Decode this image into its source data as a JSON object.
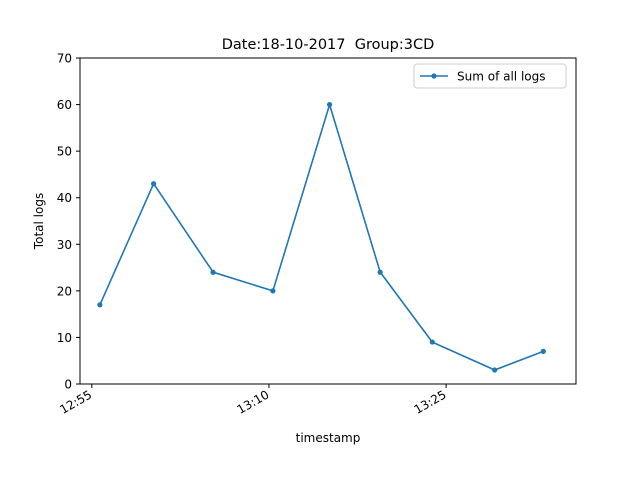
{
  "chart_data": {
    "type": "line",
    "title": "Date:18-10-2017  Group:3CD",
    "xlabel": "timestamp",
    "ylabel": "Total logs",
    "ylim": [
      0,
      70
    ],
    "y_ticks": [
      0,
      10,
      20,
      30,
      40,
      50,
      60,
      70
    ],
    "x_range": [
      "12:54",
      "13:36"
    ],
    "x_ticks": [
      "12:55",
      "13:10",
      "13:25"
    ],
    "x_tick_rotation": 30,
    "grid": false,
    "legend_position": "top-right",
    "series": [
      {
        "name": "Sum of all logs",
        "color": "#1f77b4",
        "marker": "dot",
        "x": [
          "12:55:41",
          "13:00:14",
          "13:05:16",
          "13:10:20",
          "13:15:08",
          "13:19:25",
          "13:23:50",
          "13:29:07",
          "13:33:14"
        ],
        "values": [
          17,
          43,
          24,
          20,
          60,
          24,
          9,
          3,
          7
        ]
      }
    ]
  }
}
